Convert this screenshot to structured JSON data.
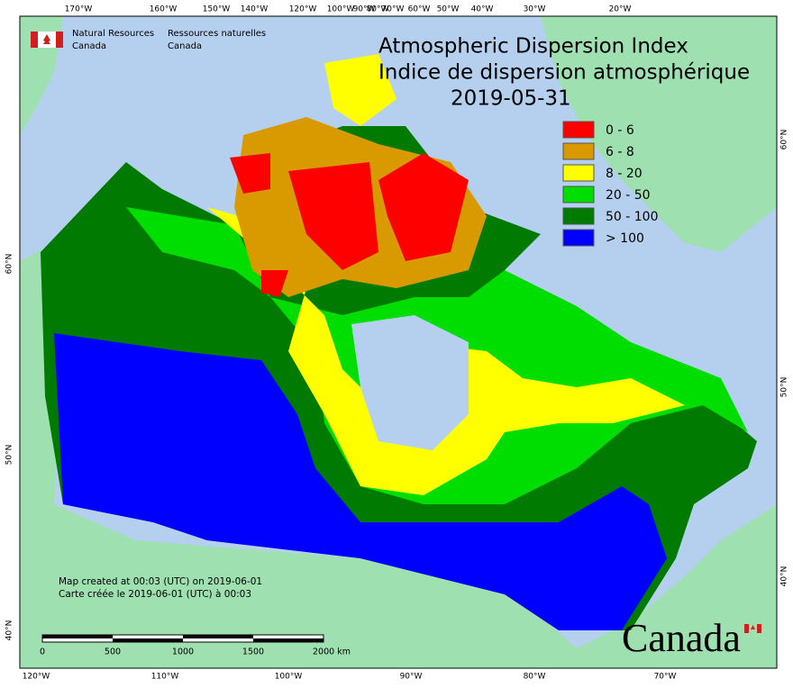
{
  "logo": {
    "en": [
      "Natural Resources",
      "Canada"
    ],
    "fr": [
      "Ressources naturelles",
      "Canada"
    ]
  },
  "title": {
    "en": "Atmospheric Dispersion Index",
    "fr": "Indice de dispersion atmosphérique",
    "date": "2019-05-31"
  },
  "legend": [
    {
      "label": "0 - 6",
      "color": "#ff0000"
    },
    {
      "label": "6 - 8",
      "color": "#d99a00"
    },
    {
      "label": "8 - 20",
      "color": "#ffff00"
    },
    {
      "label": "20 - 50",
      "color": "#00dd00"
    },
    {
      "label": "50 - 100",
      "color": "#007a00"
    },
    {
      "label": "> 100",
      "color": "#0000ff"
    }
  ],
  "graticule": {
    "top": [
      "170°W",
      "160°W",
      "150°W",
      "140°W",
      "120°W",
      "100°W",
      "90°W",
      "80°W",
      "70°W",
      "60°W",
      "50°W",
      "40°W",
      "30°W",
      "20°W"
    ],
    "bottom": [
      "120°W",
      "110°W",
      "100°W",
      "90°W",
      "80°W",
      "70°W"
    ],
    "left": [
      "60°N",
      "50°N",
      "40°N"
    ],
    "right": [
      "60°N",
      "50°N",
      "40°N"
    ]
  },
  "credits": [
    "Map created at 00:03 (UTC) on 2019-06-01",
    "Carte créée le 2019-06-01 (UTC) à 00:03"
  ],
  "scale_bar": [
    "0",
    "500",
    "1000",
    "1500",
    "2000 km"
  ],
  "wordmark": "Canada"
}
